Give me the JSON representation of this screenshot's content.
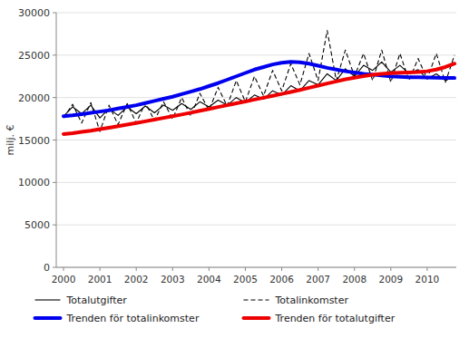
{
  "chart_data": {
    "type": "line",
    "ylabel": "milj. €",
    "x": [
      2000,
      2000.25,
      2000.5,
      2000.75,
      2001,
      2001.25,
      2001.5,
      2001.75,
      2002,
      2002.25,
      2002.5,
      2002.75,
      2003,
      2003.25,
      2003.5,
      2003.75,
      2004,
      2004.25,
      2004.5,
      2004.75,
      2005,
      2005.25,
      2005.5,
      2005.75,
      2006,
      2006.25,
      2006.5,
      2006.75,
      2007,
      2007.25,
      2007.5,
      2007.75,
      2008,
      2008.25,
      2008.5,
      2008.75,
      2009,
      2009.25,
      2009.5,
      2009.75,
      2010,
      2010.25,
      2010.5,
      2010.75
    ],
    "xlim": [
      1999.8,
      2010.8
    ],
    "xticks": [
      2000,
      2001,
      2002,
      2003,
      2004,
      2005,
      2006,
      2007,
      2008,
      2009,
      2010
    ],
    "ylim": [
      0,
      30000
    ],
    "yticks": [
      0,
      5000,
      10000,
      15000,
      20000,
      25000,
      30000
    ],
    "grid": true,
    "legend": "bottom",
    "series": [
      {
        "name": "Totalutgifter",
        "color": "#000000",
        "line_style": "solid",
        "values": [
          17800,
          18900,
          18100,
          19100,
          17600,
          18700,
          17900,
          18900,
          18100,
          19000,
          18200,
          19100,
          18500,
          19300,
          18600,
          19500,
          18900,
          19700,
          19100,
          20000,
          19400,
          20300,
          19800,
          20800,
          20300,
          21400,
          20800,
          22000,
          21500,
          22800,
          22000,
          23400,
          22500,
          23800,
          23200,
          24200,
          23000,
          23800,
          22800,
          23300,
          22200,
          22800,
          22000,
          22500
        ]
      },
      {
        "name": "Totalinkomster",
        "color": "#000000",
        "line_style": "dashed",
        "values": [
          17600,
          19200,
          17000,
          19400,
          16000,
          19100,
          16800,
          19300,
          17000,
          19400,
          17300,
          19500,
          17500,
          20000,
          17800,
          20500,
          18500,
          21200,
          19000,
          22000,
          19500,
          22500,
          20200,
          23200,
          20800,
          24000,
          21500,
          25200,
          22000,
          27900,
          22000,
          25600,
          22500,
          25200,
          22000,
          25600,
          21800,
          25200,
          22000,
          24600,
          22200,
          25200,
          21800,
          25000
        ]
      },
      {
        "name": "Trenden för totalinkomster",
        "color": "#0000ee",
        "line_style": "solid",
        "values": [
          17800,
          17900,
          18050,
          18200,
          18350,
          18500,
          18700,
          18900,
          19100,
          19350,
          19600,
          19850,
          20100,
          20400,
          20700,
          21000,
          21350,
          21700,
          22100,
          22500,
          22900,
          23300,
          23600,
          23900,
          24100,
          24200,
          24150,
          24000,
          23750,
          23500,
          23300,
          23100,
          22950,
          22800,
          22700,
          22600,
          22500,
          22450,
          22400,
          22380,
          22360,
          22340,
          22320,
          22300
        ]
      },
      {
        "name": "Trenden för totalutgifter",
        "color": "#ee0000",
        "line_style": "solid",
        "values": [
          15700,
          15800,
          15950,
          16100,
          16280,
          16450,
          16630,
          16810,
          17000,
          17200,
          17400,
          17600,
          17800,
          18000,
          18220,
          18440,
          18660,
          18880,
          19100,
          19320,
          19540,
          19760,
          19980,
          20200,
          20430,
          20660,
          20900,
          21150,
          21400,
          21660,
          21900,
          22150,
          22350,
          22520,
          22680,
          22800,
          22870,
          22920,
          22960,
          23000,
          23100,
          23300,
          23600,
          24000
        ]
      }
    ]
  }
}
